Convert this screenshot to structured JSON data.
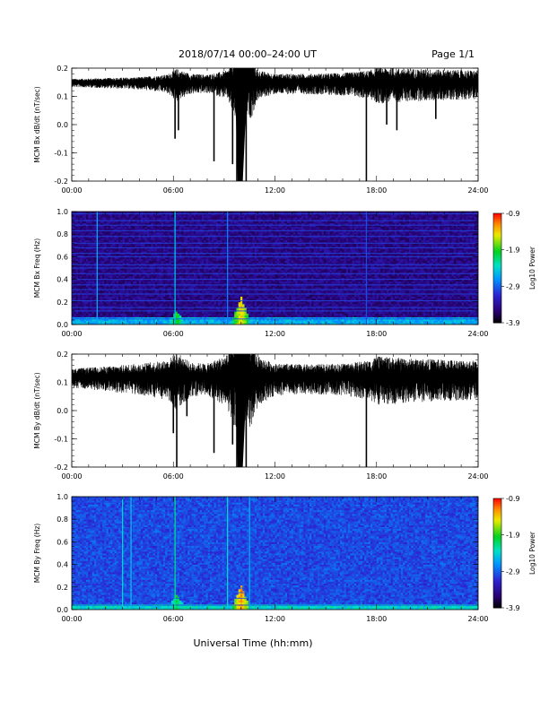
{
  "header": {
    "title": "2018/07/14   00:00–24:00 UT",
    "page": "Page 1/1"
  },
  "xlabel": "Universal Time (hh:mm)",
  "chart_data": [
    {
      "type": "line",
      "ylabel": "MCM Bx dB/dt (nT/sec)",
      "xlim": [
        0,
        24
      ],
      "ylim": [
        -0.2,
        0.2
      ],
      "x_ticks": [
        "00:00",
        "06:00",
        "12:00",
        "18:00",
        "24:00"
      ],
      "y_ticks": [
        "-0.2",
        "-0.1",
        "0.0",
        "0.1",
        "0.2"
      ],
      "series": [
        {
          "baseline": 0.15,
          "noise_amplitude": 0.025,
          "envelope": [
            [
              0,
              0.4
            ],
            [
              2,
              0.5
            ],
            [
              4,
              0.6
            ],
            [
              5.6,
              0.9
            ],
            [
              6.2,
              1.6
            ],
            [
              7,
              1.0
            ],
            [
              8,
              0.9
            ],
            [
              9.2,
              1.4
            ],
            [
              9.6,
              3.0
            ],
            [
              10.6,
              3.0
            ],
            [
              11,
              1.4
            ],
            [
              12,
              1.0
            ],
            [
              14,
              1.0
            ],
            [
              16,
              1.1
            ],
            [
              17.6,
              1.4
            ],
            [
              18,
              1.8
            ],
            [
              20,
              1.6
            ],
            [
              22,
              1.5
            ],
            [
              24,
              1.4
            ]
          ],
          "spikes": [
            {
              "t": 6.1,
              "min": -0.05
            },
            {
              "t": 6.3,
              "min": -0.02
            },
            {
              "t": 8.4,
              "min": -0.13
            },
            {
              "t": 9.5,
              "min": -0.14
            },
            {
              "t": 9.75,
              "min": -0.2
            },
            {
              "t": 10.0,
              "min": -0.2
            },
            {
              "t": 10.3,
              "min": -0.2
            },
            {
              "t": 17.4,
              "min": -0.2
            },
            {
              "t": 18.6,
              "min": 0.0
            },
            {
              "t": 19.2,
              "min": -0.02
            },
            {
              "t": 21.5,
              "min": 0.02
            }
          ]
        }
      ]
    },
    {
      "type": "heatmap",
      "ylabel": "MCM Bx Freq (Hz)",
      "colorbar_label": "Log10 Power",
      "colorbar_ticks": [
        "-0.9",
        "-1.9",
        "-2.9",
        "-3.9"
      ],
      "clim": [
        -3.9,
        -0.9
      ],
      "xlim": [
        0,
        24
      ],
      "ylim": [
        0.0,
        1.0
      ],
      "x_ticks": [
        "00:00",
        "06:00",
        "12:00",
        "18:00",
        "24:00"
      ],
      "y_ticks": [
        "0.0",
        "0.2",
        "0.4",
        "0.6",
        "0.8",
        "1.0"
      ],
      "background": -3.5,
      "low_freq_band": {
        "max_freq": 0.06,
        "level": -2.6
      },
      "harmonic_lines": [
        0.05,
        0.12,
        0.15,
        0.21,
        0.27,
        0.31,
        0.35,
        0.4,
        0.45,
        0.5,
        0.53,
        0.6,
        0.63,
        0.68,
        0.72,
        0.78,
        0.83,
        0.88,
        0.92,
        0.98
      ],
      "vertical_lines": [
        {
          "t": 1.5,
          "level": -2.6
        },
        {
          "t": 6.1,
          "level": -2.5
        },
        {
          "t": 9.2,
          "level": -2.8
        },
        {
          "t": 17.4,
          "level": -3.0
        }
      ],
      "bursts": [
        {
          "t": 6.2,
          "top": 0.12,
          "level": -1.9
        },
        {
          "t": 10.0,
          "top": 0.25,
          "level": -1.4
        }
      ]
    },
    {
      "type": "line",
      "ylabel": "MCM By dB/dt (nT/sec)",
      "xlim": [
        0,
        24
      ],
      "ylim": [
        -0.2,
        0.2
      ],
      "x_ticks": [
        "00:00",
        "06:00",
        "12:00",
        "18:00",
        "24:00"
      ],
      "y_ticks": [
        "-0.2",
        "-0.1",
        "0.0",
        "0.1",
        "0.2"
      ],
      "series": [
        {
          "baseline": 0.12,
          "noise_amplitude": 0.03,
          "envelope": [
            [
              0,
              0.8
            ],
            [
              2,
              1.0
            ],
            [
              4,
              1.3
            ],
            [
              5.6,
              1.6
            ],
            [
              6.2,
              2.4
            ],
            [
              7,
              1.4
            ],
            [
              8,
              1.3
            ],
            [
              9.2,
              2.2
            ],
            [
              9.6,
              3.5
            ],
            [
              10.6,
              3.5
            ],
            [
              11,
              2.0
            ],
            [
              12,
              1.3
            ],
            [
              14,
              1.2
            ],
            [
              16,
              1.3
            ],
            [
              17.6,
              1.6
            ],
            [
              18,
              2.0
            ],
            [
              20,
              1.8
            ],
            [
              22,
              1.7
            ],
            [
              24,
              1.6
            ]
          ],
          "spikes": [
            {
              "t": 6.0,
              "min": -0.08
            },
            {
              "t": 6.2,
              "min": -0.2
            },
            {
              "t": 6.8,
              "min": -0.02
            },
            {
              "t": 8.4,
              "min": -0.15
            },
            {
              "t": 9.5,
              "min": -0.12
            },
            {
              "t": 9.75,
              "min": -0.2
            },
            {
              "t": 10.0,
              "min": -0.2
            },
            {
              "t": 10.3,
              "min": -0.2
            },
            {
              "t": 17.4,
              "min": -0.2
            }
          ]
        }
      ]
    },
    {
      "type": "heatmap",
      "ylabel": "MCM By Freq (Hz)",
      "colorbar_label": "Log10 Power",
      "colorbar_ticks": [
        "-0.9",
        "-1.9",
        "-2.9",
        "-3.9"
      ],
      "clim": [
        -3.9,
        -0.9
      ],
      "xlim": [
        0,
        24
      ],
      "ylim": [
        0.0,
        1.0
      ],
      "x_ticks": [
        "00:00",
        "06:00",
        "12:00",
        "18:00",
        "24:00"
      ],
      "y_ticks": [
        "0.0",
        "0.2",
        "0.4",
        "0.6",
        "0.8",
        "1.0"
      ],
      "background": -3.0,
      "low_freq_band": {
        "max_freq": 0.05,
        "level": -2.4
      },
      "harmonic_lines": [
        0.04,
        0.1,
        0.15,
        0.19,
        0.24,
        0.29,
        0.34,
        0.38,
        0.43,
        0.48,
        0.53,
        0.57,
        0.62,
        0.67,
        0.72,
        0.76,
        0.81,
        0.86,
        0.9,
        0.95,
        0.99
      ],
      "vertical_lines": [
        {
          "t": 3.0,
          "level": -2.4
        },
        {
          "t": 3.5,
          "level": -2.5
        },
        {
          "t": 6.1,
          "level": -2.2
        },
        {
          "t": 9.2,
          "level": -2.4
        },
        {
          "t": 10.5,
          "level": -2.6
        }
      ],
      "bursts": [
        {
          "t": 6.2,
          "top": 0.14,
          "level": -2.0
        },
        {
          "t": 10.0,
          "top": 0.22,
          "level": -1.2
        }
      ]
    }
  ]
}
